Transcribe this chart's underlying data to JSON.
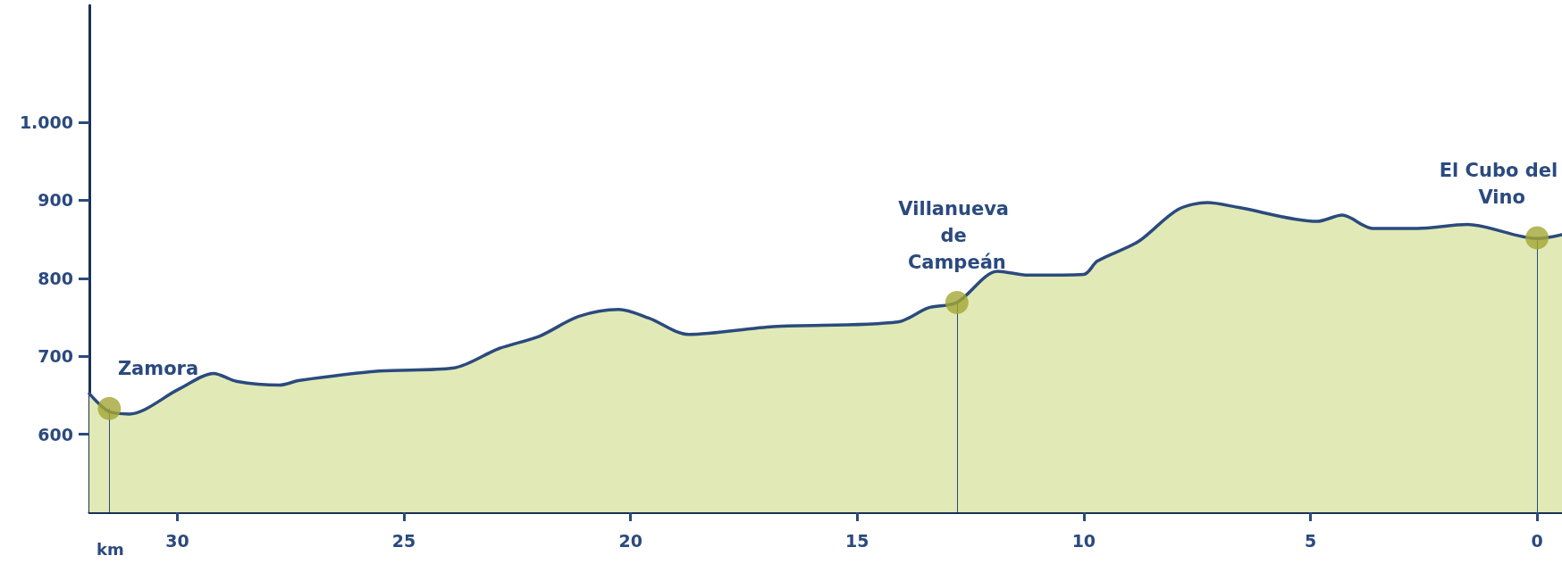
{
  "chart_data": {
    "type": "area",
    "xlabel": "km",
    "xlim": [
      31.94,
      -0.55
    ],
    "xticks": [
      30,
      25,
      20,
      15,
      10,
      5,
      0
    ],
    "ylim": [
      500,
      1150
    ],
    "yticks": [
      600,
      700,
      800,
      900,
      {
        "value": 1000,
        "label": "1.000"
      }
    ],
    "grid": false,
    "series": [
      {
        "color": "#e1eab6",
        "marker": "none",
        "x": [
          31.94,
          31.5,
          31.06,
          29.96,
          29.2,
          28.7,
          27.75,
          27.3,
          25.55,
          23.9,
          22.9,
          22.0,
          21.15,
          20.26,
          19.6,
          18.72,
          16.85,
          14.1,
          13.44,
          12.8,
          11.9,
          11.23,
          10.0,
          9.7,
          8.8,
          7.93,
          7.27,
          6.6,
          4.85,
          4.3,
          3.63,
          2.64,
          1.54,
          0,
          -0.55
        ],
        "values": [
          652,
          629,
          626,
          658,
          678,
          668,
          663,
          669,
          681,
          685,
          710,
          726,
          751,
          760,
          749,
          728,
          738,
          744,
          762,
          769,
          809,
          804,
          805,
          822,
          847,
          888,
          897,
          891,
          873,
          881,
          864,
          864,
          869,
          851,
          856
        ]
      },
      {
        "type": "line",
        "color": "#2b4a7e",
        "line_style": "solid",
        "marker": "none",
        "x": [
          31.94,
          31.5,
          31.06,
          29.96,
          29.2,
          28.7,
          27.75,
          27.3,
          25.55,
          23.9,
          22.9,
          22.0,
          21.15,
          20.26,
          19.6,
          18.72,
          16.85,
          14.1,
          13.44,
          12.8,
          11.9,
          11.23,
          10.0,
          9.7,
          8.8,
          7.93,
          7.27,
          6.6,
          4.85,
          4.3,
          3.63,
          2.64,
          1.54,
          0,
          -0.55
        ],
        "values": [
          652,
          629,
          626,
          658,
          678,
          668,
          663,
          669,
          681,
          685,
          710,
          726,
          751,
          760,
          749,
          728,
          738,
          744,
          762,
          769,
          809,
          804,
          805,
          822,
          847,
          888,
          897,
          891,
          873,
          881,
          864,
          864,
          869,
          851,
          856
        ]
      },
      {
        "type": "lollipop",
        "color": "#a3a634",
        "marker": "circle",
        "x": [
          31.5,
          12.8,
          0
        ],
        "values": [
          633,
          769,
          852
        ]
      }
    ],
    "annotations": [
      {
        "text": "Zamora",
        "x": 31.5,
        "y": 633
      },
      {
        "text": "Villanueva de Campeán",
        "x": 12.8,
        "y": 769
      },
      {
        "text": "El Cubo del Vino",
        "x": 0,
        "y": 852
      }
    ]
  }
}
